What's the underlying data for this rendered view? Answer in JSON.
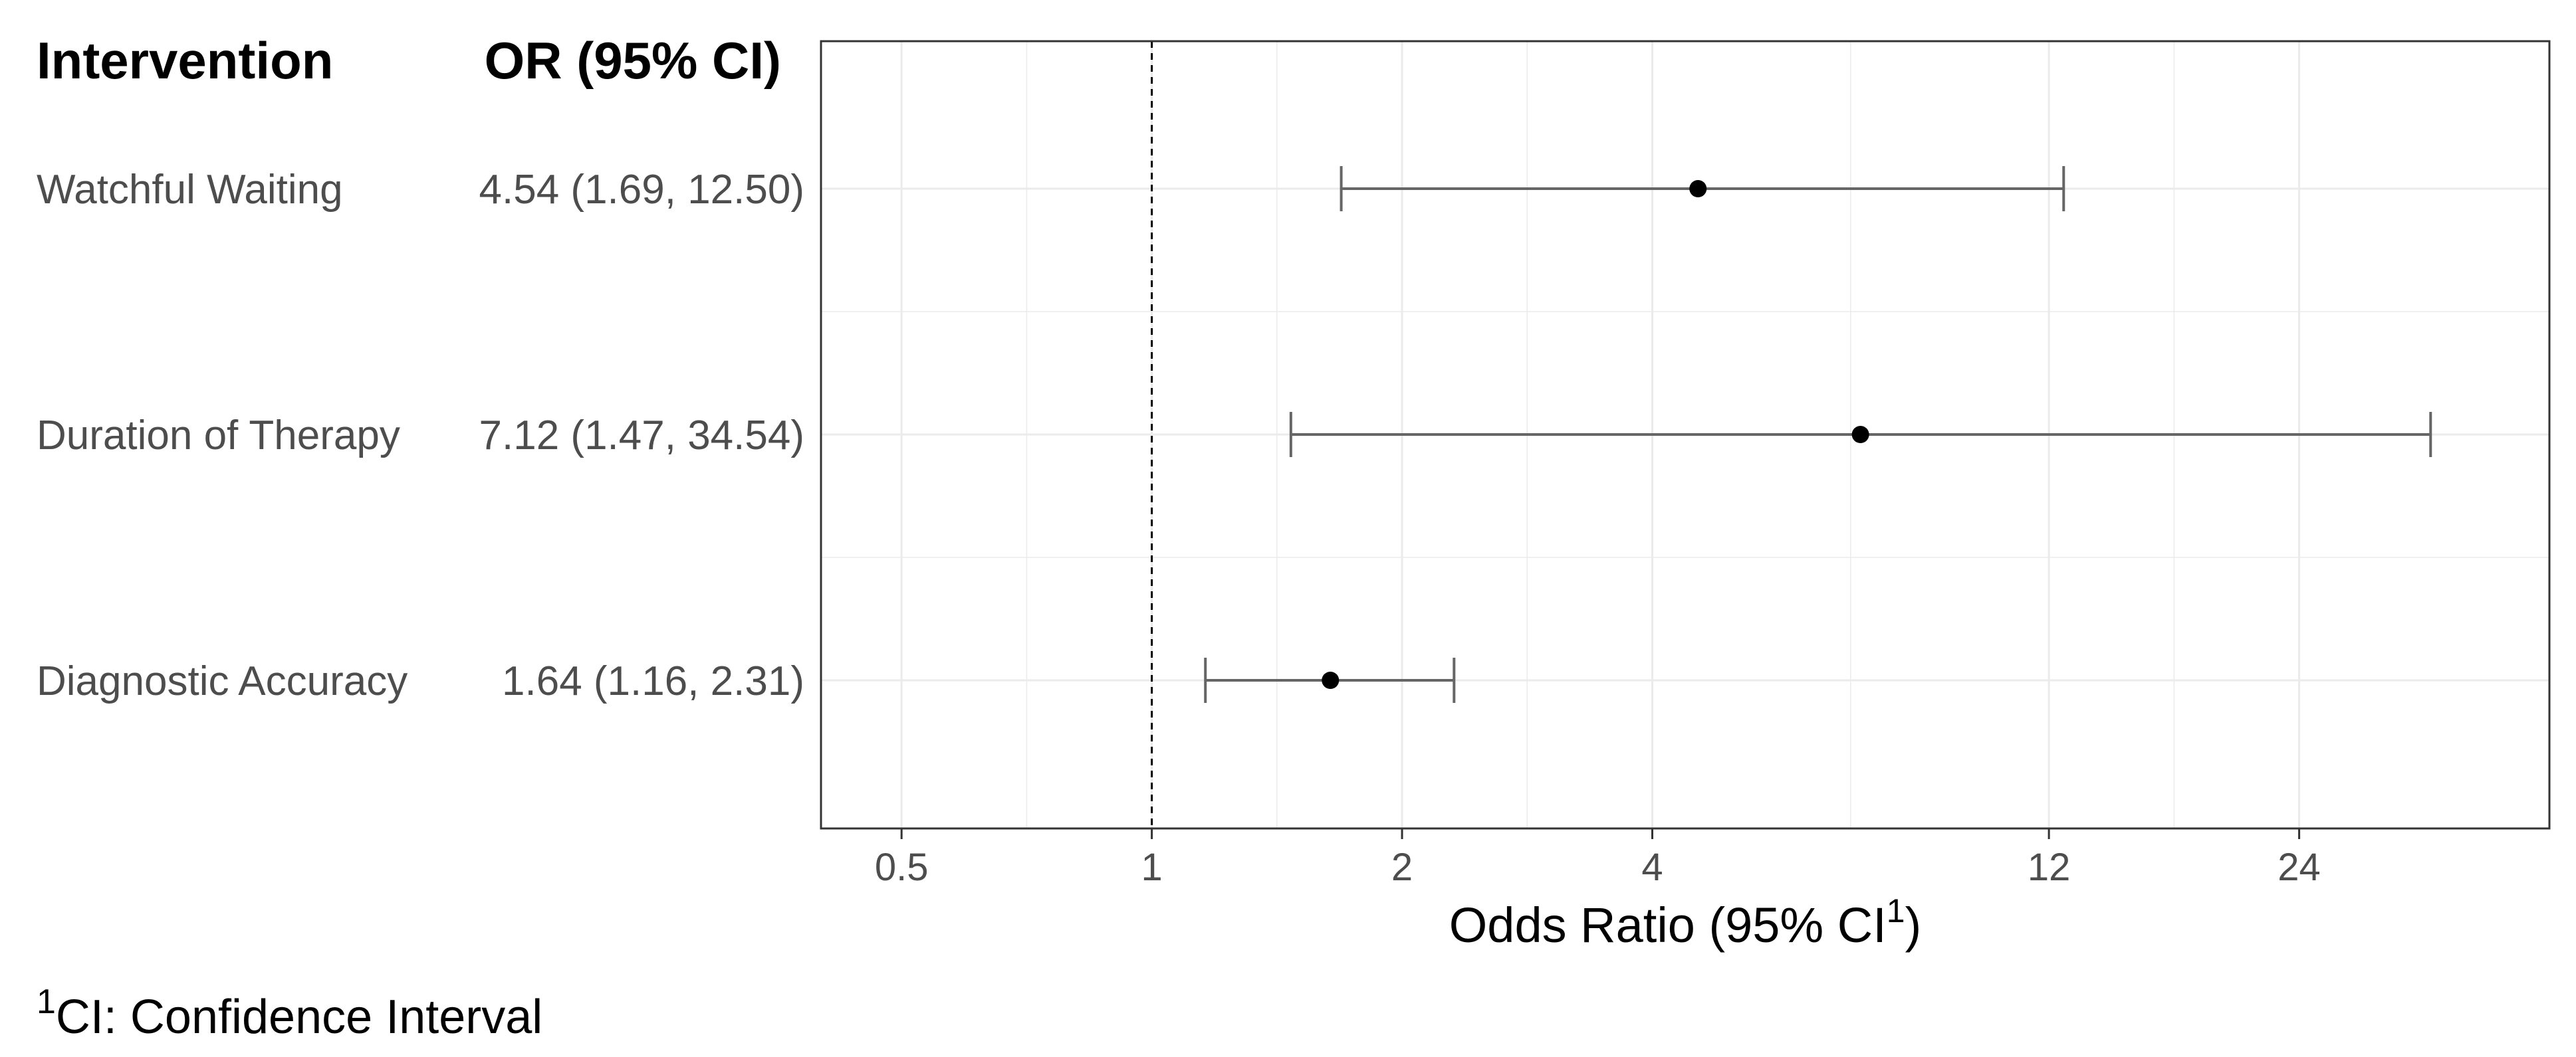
{
  "headers": {
    "label_col": "Intervention",
    "estimate_col": "OR (95% CI)"
  },
  "chart_data": {
    "type": "scatter",
    "subtype": "forest-plot",
    "x_scale": "log",
    "xlim": [
      0.4,
      48
    ],
    "xticks": [
      0.5,
      1,
      2,
      4,
      12,
      24
    ],
    "xtick_labels": [
      "0.5",
      "1",
      "2",
      "4",
      "12",
      "24"
    ],
    "reference_line": 1,
    "xlabel": {
      "main": "Odds Ratio (95% CI",
      "sup": "1",
      "close": ")"
    },
    "grid": true,
    "rows": [
      {
        "label": "Watchful Waiting",
        "or": 4.54,
        "lower": 1.69,
        "upper": 12.5,
        "or_text": "4.54 (1.69, 12.50)"
      },
      {
        "label": "Duration of Therapy",
        "or": 7.12,
        "lower": 1.47,
        "upper": 34.54,
        "or_text": "7.12 (1.47, 34.54)"
      },
      {
        "label": "Diagnostic Accuracy",
        "or": 1.64,
        "lower": 1.16,
        "upper": 2.31,
        "or_text": "1.64 (1.16, 2.31)"
      }
    ]
  },
  "footnote": {
    "sup": "1",
    "text": "CI: Confidence Interval"
  },
  "colors": {
    "frame": "#333333",
    "grid": "#ebebeb",
    "errorbar": "#666666",
    "point": "#000000",
    "reference": "#000000"
  }
}
